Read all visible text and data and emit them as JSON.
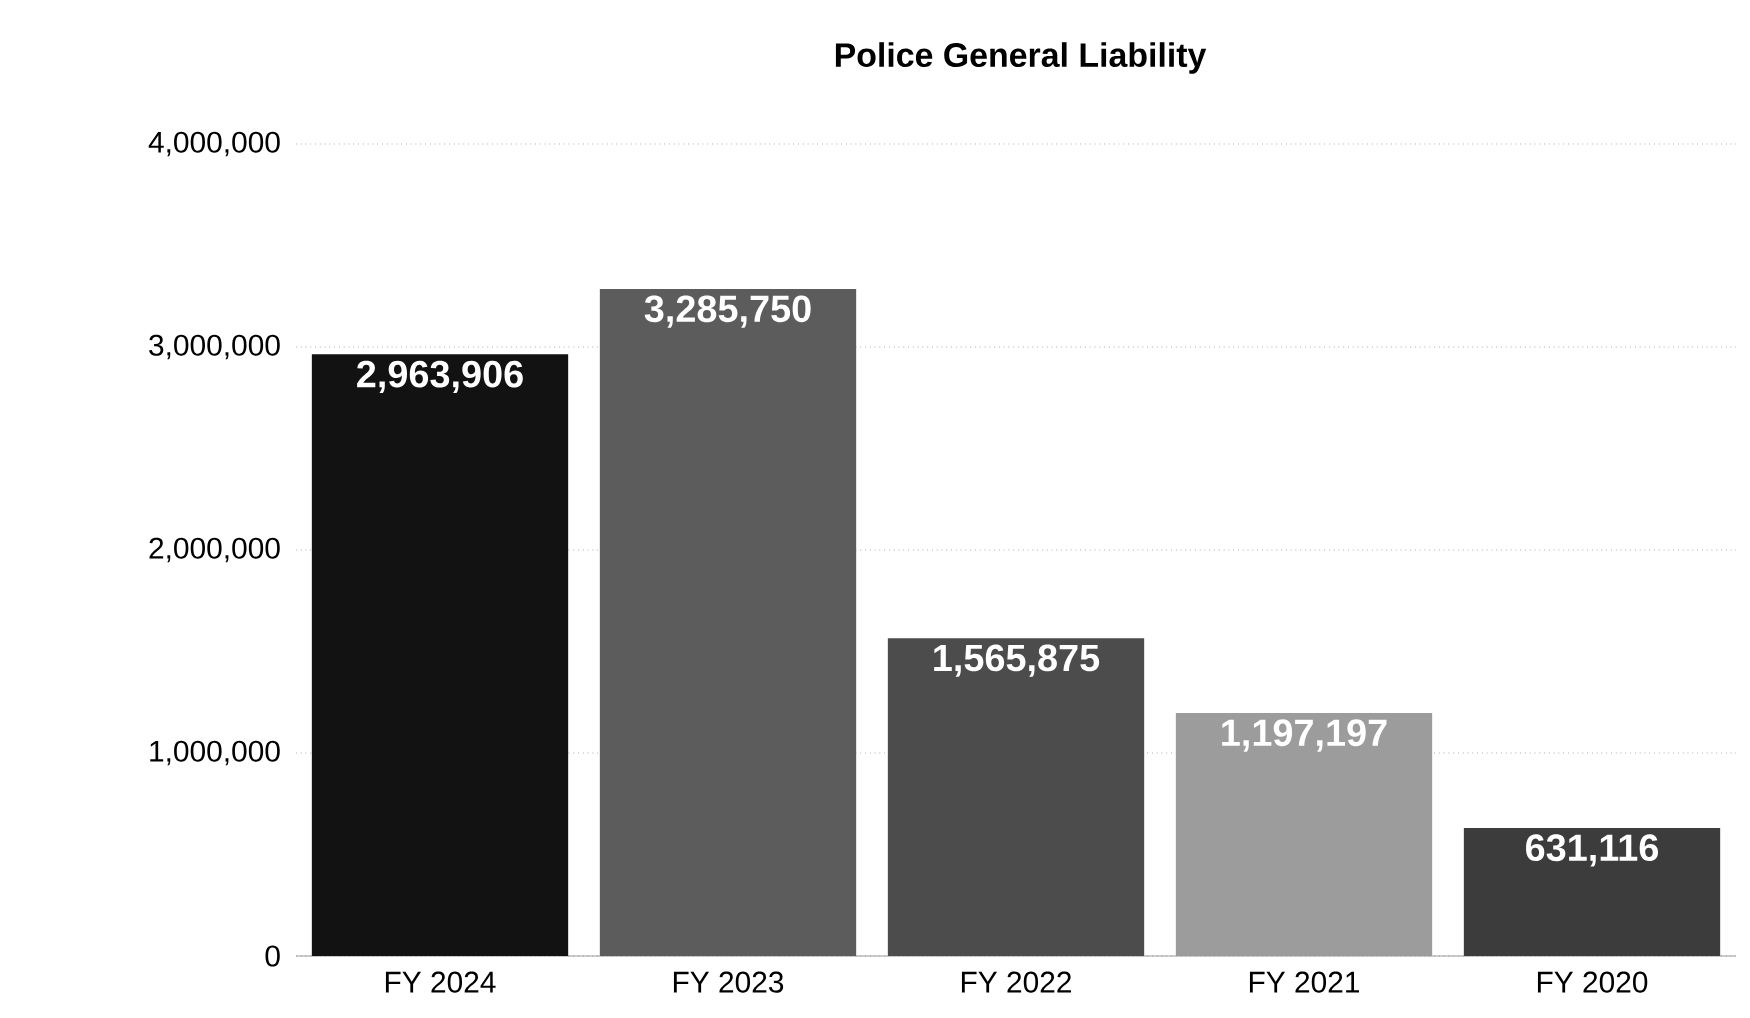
{
  "chart_data": {
    "type": "bar",
    "title": "Police General Liability",
    "categories": [
      "FY 2024",
      "FY 2023",
      "FY 2022",
      "FY 2021",
      "FY 2020"
    ],
    "values": [
      2963906,
      3285750,
      1565875,
      1197197,
      631116
    ],
    "value_labels": [
      "2,963,906",
      "3,285,750",
      "1,565,875",
      "1,197,197",
      "631,116"
    ],
    "colors": [
      "#121212",
      "#5c5c5c",
      "#4c4c4c",
      "#9c9c9c",
      "#3c3c3c"
    ],
    "ylim": [
      0,
      4000000
    ],
    "yticks": [
      {
        "value": 0,
        "label": "0"
      },
      {
        "value": 1000000,
        "label": "1,000,000"
      },
      {
        "value": 2000000,
        "label": "2,000,000"
      },
      {
        "value": 3000000,
        "label": "3,000,000"
      },
      {
        "value": 4000000,
        "label": "4,000,000"
      }
    ],
    "grid": "y"
  }
}
